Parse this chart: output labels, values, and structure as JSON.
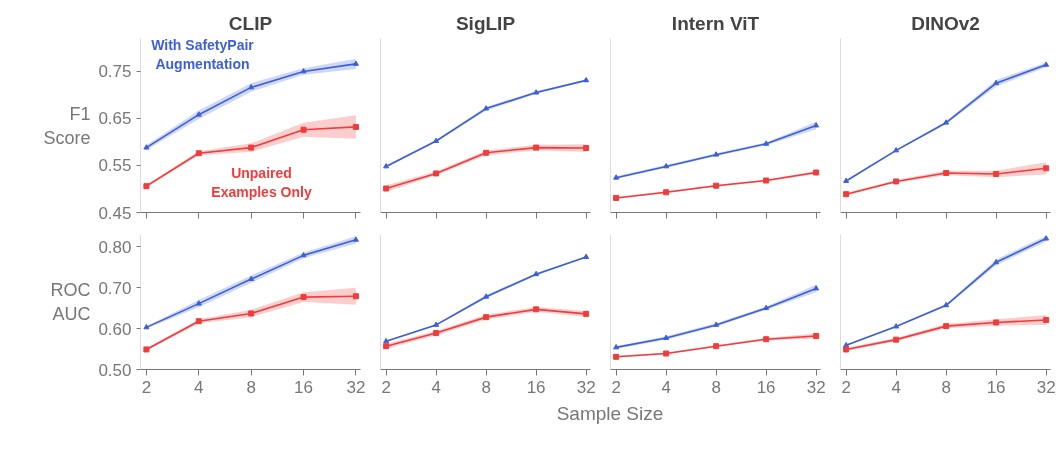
{
  "chart_data": [
    {
      "type": "line",
      "title": "CLIP",
      "ylabel": "F1\nScore",
      "x": [
        2,
        4,
        8,
        16,
        32
      ],
      "log": "x",
      "xlim": [
        1.85,
        34
      ],
      "xticks": [
        2,
        4,
        8,
        16,
        32
      ],
      "ylim": [
        0.45,
        0.82
      ],
      "yticks": [
        0.45,
        0.55,
        0.65,
        0.75
      ],
      "tick_labels": "y",
      "grid": false,
      "line_style": "solid",
      "annotations": [
        "With SafetyPair\nAugmentation",
        "Unpaired\nExamples Only"
      ],
      "series": [
        {
          "color": "#3d5fd6",
          "marker": "triangle",
          "values": [
            0.588,
            0.658,
            0.716,
            0.75,
            0.766
          ],
          "lower": [
            0.583,
            0.649,
            0.707,
            0.743,
            0.755
          ],
          "upper": [
            0.593,
            0.667,
            0.725,
            0.757,
            0.777
          ]
        },
        {
          "color": "#f03c3c",
          "marker": "square",
          "values": [
            0.506,
            0.576,
            0.588,
            0.626,
            0.632
          ],
          "lower": [
            0.503,
            0.572,
            0.579,
            0.611,
            0.607
          ],
          "upper": [
            0.509,
            0.58,
            0.597,
            0.641,
            0.657
          ]
        }
      ]
    },
    {
      "type": "line",
      "title": "SigLIP",
      "x": [
        2,
        4,
        8,
        16,
        32
      ],
      "log": "x",
      "xlim": [
        1.85,
        34
      ],
      "xticks": [
        2,
        4,
        8,
        16,
        32
      ],
      "ylim": [
        0.45,
        0.82
      ],
      "yticks": [
        0.45,
        0.55,
        0.65,
        0.75
      ],
      "tick_labels": false,
      "grid": false,
      "line_style": "solid",
      "series": [
        {
          "color": "#3d5fd6",
          "marker": "triangle",
          "values": [
            0.548,
            0.602,
            0.671,
            0.705,
            0.731
          ],
          "lower": [
            0.546,
            0.6,
            0.667,
            0.702,
            0.729
          ],
          "upper": [
            0.55,
            0.604,
            0.675,
            0.708,
            0.733
          ]
        },
        {
          "color": "#f03c3c",
          "marker": "square",
          "values": [
            0.501,
            0.533,
            0.577,
            0.588,
            0.587
          ],
          "lower": [
            0.494,
            0.529,
            0.572,
            0.582,
            0.579
          ],
          "upper": [
            0.508,
            0.537,
            0.582,
            0.594,
            0.595
          ]
        }
      ]
    },
    {
      "type": "line",
      "title": "Intern ViT",
      "x": [
        2,
        4,
        8,
        16,
        32
      ],
      "log": "x",
      "xlim": [
        1.85,
        34
      ],
      "xticks": [
        2,
        4,
        8,
        16,
        32
      ],
      "ylim": [
        0.45,
        0.82
      ],
      "yticks": [
        0.45,
        0.55,
        0.65,
        0.75
      ],
      "tick_labels": false,
      "grid": false,
      "line_style": "solid",
      "series": [
        {
          "color": "#3d5fd6",
          "marker": "triangle",
          "values": [
            0.524,
            0.548,
            0.573,
            0.596,
            0.635
          ],
          "lower": [
            0.521,
            0.545,
            0.57,
            0.593,
            0.627
          ],
          "upper": [
            0.527,
            0.551,
            0.576,
            0.599,
            0.643
          ]
        },
        {
          "color": "#f03c3c",
          "marker": "square",
          "values": [
            0.481,
            0.493,
            0.507,
            0.518,
            0.535
          ],
          "lower": [
            0.479,
            0.491,
            0.505,
            0.516,
            0.532
          ],
          "upper": [
            0.483,
            0.495,
            0.509,
            0.52,
            0.538
          ]
        }
      ]
    },
    {
      "type": "line",
      "title": "DINOv2",
      "x": [
        2,
        4,
        8,
        16,
        32
      ],
      "log": "x",
      "xlim": [
        1.85,
        34
      ],
      "xticks": [
        2,
        4,
        8,
        16,
        32
      ],
      "ylim": [
        0.45,
        0.82
      ],
      "yticks": [
        0.45,
        0.55,
        0.65,
        0.75
      ],
      "tick_labels": false,
      "grid": false,
      "line_style": "solid",
      "series": [
        {
          "color": "#3d5fd6",
          "marker": "triangle",
          "values": [
            0.517,
            0.582,
            0.641,
            0.725,
            0.764
          ],
          "lower": [
            0.515,
            0.58,
            0.638,
            0.718,
            0.759
          ],
          "upper": [
            0.519,
            0.584,
            0.644,
            0.732,
            0.769
          ]
        },
        {
          "color": "#f03c3c",
          "marker": "square",
          "values": [
            0.489,
            0.516,
            0.534,
            0.532,
            0.544
          ],
          "lower": [
            0.486,
            0.513,
            0.529,
            0.525,
            0.531
          ],
          "upper": [
            0.492,
            0.519,
            0.539,
            0.539,
            0.557
          ]
        }
      ]
    },
    {
      "type": "line",
      "ylabel": "ROC\nAUC",
      "x": [
        2,
        4,
        8,
        16,
        32
      ],
      "log": "x",
      "xlim": [
        1.85,
        34
      ],
      "xticks": [
        2,
        4,
        8,
        16,
        32
      ],
      "ylim": [
        0.5,
        0.83
      ],
      "yticks": [
        {
          "value": 0.5,
          "label": "0.50"
        },
        {
          "value": 0.6,
          "label": "0.60"
        },
        {
          "value": 0.7,
          "label": "0.70"
        },
        {
          "value": 0.8,
          "label": "0.80"
        }
      ],
      "grid": false,
      "line_style": "solid",
      "series": [
        {
          "color": "#3d5fd6",
          "marker": "triangle",
          "values": [
            0.603,
            0.661,
            0.721,
            0.779,
            0.817
          ],
          "lower": [
            0.6,
            0.652,
            0.712,
            0.772,
            0.808
          ],
          "upper": [
            0.606,
            0.67,
            0.73,
            0.786,
            0.826
          ]
        },
        {
          "color": "#f03c3c",
          "marker": "square",
          "values": [
            0.549,
            0.618,
            0.637,
            0.677,
            0.679
          ],
          "lower": [
            0.546,
            0.613,
            0.628,
            0.665,
            0.658
          ],
          "upper": [
            0.552,
            0.623,
            0.646,
            0.689,
            0.7
          ]
        }
      ]
    },
    {
      "type": "line",
      "x": [
        2,
        4,
        8,
        16,
        32
      ],
      "log": "x",
      "xlim": [
        1.85,
        34
      ],
      "xticks": [
        2,
        4,
        8,
        16,
        32
      ],
      "ylim": [
        0.5,
        0.83
      ],
      "yticks": [
        0.5,
        0.6,
        0.7,
        0.8
      ],
      "tick_labels": "x",
      "grid": false,
      "line_style": "solid",
      "series": [
        {
          "color": "#3d5fd6",
          "marker": "triangle",
          "values": [
            0.569,
            0.609,
            0.678,
            0.733,
            0.775
          ],
          "lower": [
            0.567,
            0.607,
            0.674,
            0.73,
            0.773
          ],
          "upper": [
            0.571,
            0.611,
            0.682,
            0.736,
            0.777
          ]
        },
        {
          "color": "#f03c3c",
          "marker": "square",
          "values": [
            0.557,
            0.589,
            0.628,
            0.647,
            0.636
          ],
          "lower": [
            0.551,
            0.584,
            0.622,
            0.641,
            0.629
          ],
          "upper": [
            0.563,
            0.594,
            0.634,
            0.653,
            0.643
          ]
        }
      ]
    },
    {
      "type": "line",
      "x": [
        2,
        4,
        8,
        16,
        32
      ],
      "log": "x",
      "xlim": [
        1.85,
        34
      ],
      "xticks": [
        2,
        4,
        8,
        16,
        32
      ],
      "ylim": [
        0.5,
        0.83
      ],
      "yticks": [
        0.5,
        0.6,
        0.7,
        0.8
      ],
      "tick_labels": "x",
      "grid": false,
      "line_style": "solid",
      "series": [
        {
          "color": "#3d5fd6",
          "marker": "triangle",
          "values": [
            0.554,
            0.577,
            0.609,
            0.65,
            0.698
          ],
          "lower": [
            0.551,
            0.573,
            0.605,
            0.646,
            0.689
          ],
          "upper": [
            0.557,
            0.581,
            0.613,
            0.654,
            0.707
          ]
        },
        {
          "color": "#f03c3c",
          "marker": "square",
          "values": [
            0.531,
            0.539,
            0.557,
            0.574,
            0.582
          ],
          "lower": [
            0.529,
            0.537,
            0.555,
            0.571,
            0.576
          ],
          "upper": [
            0.533,
            0.541,
            0.559,
            0.577,
            0.588
          ]
        }
      ]
    },
    {
      "type": "line",
      "annotations": [
        "Sample Size"
      ],
      "x": [
        2,
        4,
        8,
        16,
        32
      ],
      "log": "x",
      "xlim": [
        1.85,
        34
      ],
      "xticks": [
        2,
        4,
        8,
        16,
        32
      ],
      "ylim": [
        0.5,
        0.83
      ],
      "yticks": [
        0.5,
        0.6,
        0.7,
        0.8
      ],
      "tick_labels": "x",
      "grid": false,
      "line_style": "solid",
      "series": [
        {
          "color": "#3d5fd6",
          "marker": "triangle",
          "values": [
            0.559,
            0.605,
            0.657,
            0.762,
            0.82
          ],
          "lower": [
            0.557,
            0.603,
            0.654,
            0.755,
            0.813
          ],
          "upper": [
            0.561,
            0.607,
            0.66,
            0.769,
            0.827
          ]
        },
        {
          "color": "#f03c3c",
          "marker": "square",
          "values": [
            0.549,
            0.573,
            0.606,
            0.615,
            0.621
          ],
          "lower": [
            0.545,
            0.569,
            0.601,
            0.607,
            0.609
          ],
          "upper": [
            0.553,
            0.577,
            0.611,
            0.623,
            0.633
          ]
        }
      ]
    }
  ]
}
